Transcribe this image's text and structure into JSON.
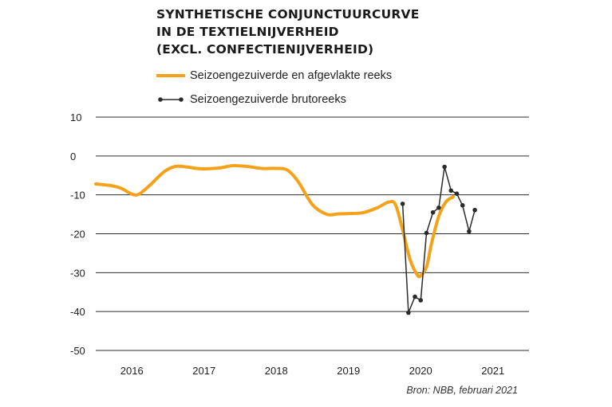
{
  "title_lines": [
    "SYNTHETISCHE CONJUNCTUURCURVE",
    "IN DE TEXTIELNIJVERHEID",
    "(EXCL. CONFECTIENIJVERHEID)"
  ],
  "source": "Bron: NBB, februari 2021",
  "colors": {
    "smoothed": "#f5a21b",
    "raw": "#2b2b2b",
    "grid": "#2b2b2b",
    "text": "#1e1e1e"
  },
  "chart_data": {
    "type": "line",
    "title": "SYNTHETISCHE CONJUNCTUURCURVE IN DE TEXTIELNIJVERHEID (EXCL. CONFECTIENIJVERHEID)",
    "xlabel": "",
    "ylabel": "",
    "xlim": [
      2015.5,
      2021.5
    ],
    "ylim": [
      -50,
      10
    ],
    "yticks": [
      10,
      0,
      -10,
      -20,
      -30,
      -40,
      -50
    ],
    "xticks": [
      2016,
      2017,
      2018,
      2019,
      2020,
      2021
    ],
    "grid": "horizontal",
    "legend_position": "top-left",
    "series": [
      {
        "name": "Seizoengezuiverde en afgevlakte reeks",
        "style": "smooth",
        "x": [
          2015.5,
          2015.7,
          2015.85,
          2016.0,
          2016.1,
          2016.25,
          2016.45,
          2016.6,
          2016.75,
          2016.95,
          2017.2,
          2017.4,
          2017.6,
          2017.8,
          2018.0,
          2018.15,
          2018.3,
          2018.5,
          2018.7,
          2018.85,
          2019.0,
          2019.2,
          2019.4,
          2019.55,
          2019.65,
          2019.75,
          2019.85,
          2019.95,
          2020.0,
          2020.08,
          2020.15,
          2020.25,
          2020.35,
          2020.45
        ],
        "y": [
          -7.2,
          -7.6,
          -8.3,
          -9.8,
          -9.8,
          -7.5,
          -4.0,
          -2.7,
          -2.8,
          -3.3,
          -3.1,
          -2.5,
          -2.7,
          -3.2,
          -3.2,
          -3.6,
          -6.5,
          -12.5,
          -15.0,
          -14.9,
          -14.8,
          -14.6,
          -13.3,
          -11.9,
          -12.5,
          -19.0,
          -26.5,
          -30.5,
          -30.8,
          -28.5,
          -22.5,
          -15.5,
          -11.8,
          -10.5
        ]
      },
      {
        "name": "Seizoengezuiverde brutoreeks",
        "style": "line-markers",
        "x": [
          2019.75,
          2019.83,
          2019.92,
          2020.0,
          2020.08,
          2020.17,
          2020.25,
          2020.33,
          2020.42,
          2020.5,
          2020.58,
          2020.67,
          2020.75
        ],
        "y": [
          -12.3,
          -40.3,
          -36.2,
          -37.1,
          -19.8,
          -14.5,
          -13.3,
          -2.8,
          -8.9,
          -9.7,
          -12.7,
          -19.4,
          -13.9
        ]
      }
    ]
  }
}
